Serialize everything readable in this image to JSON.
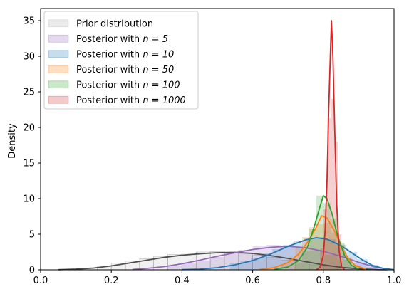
{
  "chart_data": {
    "type": "area",
    "title": "",
    "xlabel": "",
    "ylabel": "Density",
    "xlim": [
      0.0,
      1.0
    ],
    "ylim": [
      0,
      36.7
    ],
    "xticks": [
      0.0,
      0.2,
      0.4,
      0.6,
      0.8,
      1.0
    ],
    "xtick_labels": [
      "0.0",
      "0.2",
      "0.4",
      "0.6",
      "0.8",
      "1.0"
    ],
    "yticks": [
      0,
      5,
      10,
      15,
      20,
      25,
      30,
      35
    ],
    "ytick_labels": [
      "0",
      "5",
      "10",
      "15",
      "20",
      "25",
      "30",
      "35"
    ],
    "grid": false,
    "legend_position": "upper left",
    "legend_label_prefix": "Posterior with ",
    "series": [
      {
        "name": "Prior distribution",
        "n": "",
        "color": "#4d4d4d",
        "fill": "#b0b0b0",
        "kde": [
          [
            0.05,
            0.02
          ],
          [
            0.1,
            0.1
          ],
          [
            0.15,
            0.25
          ],
          [
            0.2,
            0.55
          ],
          [
            0.25,
            0.95
          ],
          [
            0.3,
            1.35
          ],
          [
            0.35,
            1.75
          ],
          [
            0.4,
            2.05
          ],
          [
            0.45,
            2.25
          ],
          [
            0.5,
            2.4
          ],
          [
            0.55,
            2.45
          ],
          [
            0.6,
            2.3
          ],
          [
            0.65,
            2.0
          ],
          [
            0.7,
            1.6
          ],
          [
            0.75,
            1.15
          ],
          [
            0.8,
            0.7
          ],
          [
            0.85,
            0.35
          ],
          [
            0.9,
            0.15
          ],
          [
            0.95,
            0.03
          ],
          [
            0.98,
            0.01
          ]
        ],
        "bins": [
          [
            0.1,
            0.12
          ],
          [
            0.14,
            0.25
          ],
          [
            0.18,
            0.55
          ],
          [
            0.22,
            0.95
          ],
          [
            0.26,
            1.25
          ],
          [
            0.3,
            1.55
          ],
          [
            0.34,
            1.9
          ],
          [
            0.38,
            2.15
          ],
          [
            0.42,
            2.35
          ],
          [
            0.46,
            2.5
          ],
          [
            0.5,
            2.55
          ],
          [
            0.54,
            2.5
          ],
          [
            0.58,
            2.3
          ],
          [
            0.62,
            2.05
          ],
          [
            0.66,
            1.75
          ],
          [
            0.7,
            1.35
          ],
          [
            0.74,
            1.0
          ],
          [
            0.78,
            0.7
          ],
          [
            0.82,
            0.45
          ],
          [
            0.86,
            0.25
          ],
          [
            0.9,
            0.1
          ]
        ]
      },
      {
        "name": "Posterior with ",
        "n": "n = 5",
        "color": "#9467bd",
        "fill": "#9467bd",
        "kde": [
          [
            0.26,
            0.05
          ],
          [
            0.3,
            0.2
          ],
          [
            0.35,
            0.45
          ],
          [
            0.4,
            0.85
          ],
          [
            0.45,
            1.35
          ],
          [
            0.5,
            1.9
          ],
          [
            0.55,
            2.4
          ],
          [
            0.6,
            2.85
          ],
          [
            0.65,
            3.15
          ],
          [
            0.7,
            3.3
          ],
          [
            0.75,
            3.1
          ],
          [
            0.8,
            2.6
          ],
          [
            0.85,
            1.9
          ],
          [
            0.9,
            1.05
          ],
          [
            0.95,
            0.35
          ],
          [
            0.99,
            0.05
          ]
        ],
        "bins": [
          [
            0.38,
            0.6
          ],
          [
            0.42,
            0.9
          ],
          [
            0.46,
            1.3
          ],
          [
            0.5,
            1.8
          ],
          [
            0.54,
            2.3
          ],
          [
            0.58,
            2.8
          ],
          [
            0.62,
            3.3
          ],
          [
            0.66,
            3.5
          ],
          [
            0.7,
            3.4
          ],
          [
            0.74,
            3.1
          ],
          [
            0.78,
            2.7
          ],
          [
            0.82,
            2.1
          ],
          [
            0.86,
            1.5
          ],
          [
            0.9,
            0.9
          ],
          [
            0.94,
            0.4
          ]
        ]
      },
      {
        "name": "Posterior with ",
        "n": "n = 10",
        "color": "#1f77b4",
        "fill": "#1f77b4",
        "kde": [
          [
            0.4,
            0.03
          ],
          [
            0.45,
            0.1
          ],
          [
            0.5,
            0.3
          ],
          [
            0.55,
            0.7
          ],
          [
            0.6,
            1.3
          ],
          [
            0.65,
            2.2
          ],
          [
            0.7,
            3.3
          ],
          [
            0.75,
            4.2
          ],
          [
            0.78,
            4.5
          ],
          [
            0.81,
            4.3
          ],
          [
            0.85,
            3.4
          ],
          [
            0.88,
            2.4
          ],
          [
            0.91,
            1.4
          ],
          [
            0.94,
            0.6
          ],
          [
            0.97,
            0.2
          ],
          [
            1.0,
            0.02
          ]
        ],
        "bins": [
          [
            0.55,
            0.9
          ],
          [
            0.58,
            1.2
          ],
          [
            0.61,
            1.7
          ],
          [
            0.64,
            2.3
          ],
          [
            0.67,
            2.9
          ],
          [
            0.7,
            3.5
          ],
          [
            0.73,
            4.0
          ],
          [
            0.76,
            4.4
          ],
          [
            0.79,
            4.6
          ],
          [
            0.82,
            4.3
          ],
          [
            0.85,
            3.5
          ],
          [
            0.88,
            2.5
          ],
          [
            0.91,
            1.5
          ],
          [
            0.94,
            0.7
          ]
        ]
      },
      {
        "name": "Posterior with ",
        "n": "n = 50",
        "color": "#ff7f0e",
        "fill": "#ff7f0e",
        "kde": [
          [
            0.62,
            0.05
          ],
          [
            0.66,
            0.3
          ],
          [
            0.7,
            1.0
          ],
          [
            0.73,
            2.2
          ],
          [
            0.76,
            4.2
          ],
          [
            0.78,
            6.0
          ],
          [
            0.795,
            7.6
          ],
          [
            0.81,
            7.3
          ],
          [
            0.83,
            5.6
          ],
          [
            0.85,
            3.4
          ],
          [
            0.87,
            1.6
          ],
          [
            0.89,
            0.6
          ],
          [
            0.92,
            0.1
          ]
        ],
        "bins": [
          [
            0.69,
            0.8
          ],
          [
            0.71,
            1.8
          ],
          [
            0.73,
            3.0
          ],
          [
            0.75,
            4.6
          ],
          [
            0.77,
            6.0
          ],
          [
            0.79,
            6.4
          ],
          [
            0.81,
            6.6
          ],
          [
            0.83,
            5.2
          ],
          [
            0.85,
            3.6
          ],
          [
            0.87,
            1.8
          ],
          [
            0.89,
            0.7
          ]
        ]
      },
      {
        "name": "Posterior with ",
        "n": "n = 100",
        "color": "#2ca02c",
        "fill": "#2ca02c",
        "kde": [
          [
            0.66,
            0.05
          ],
          [
            0.7,
            0.4
          ],
          [
            0.73,
            1.3
          ],
          [
            0.755,
            3.2
          ],
          [
            0.775,
            6.2
          ],
          [
            0.79,
            8.8
          ],
          [
            0.8,
            10.4
          ],
          [
            0.81,
            10.0
          ],
          [
            0.825,
            7.8
          ],
          [
            0.84,
            4.8
          ],
          [
            0.86,
            2.0
          ],
          [
            0.88,
            0.6
          ],
          [
            0.9,
            0.1
          ]
        ],
        "bins": [
          [
            0.73,
            0.9
          ],
          [
            0.75,
            2.6
          ],
          [
            0.77,
            5.8
          ],
          [
            0.79,
            10.4
          ],
          [
            0.81,
            9.4
          ],
          [
            0.83,
            7.2
          ],
          [
            0.85,
            3.8
          ],
          [
            0.87,
            1.4
          ]
        ]
      },
      {
        "name": "Posterior with ",
        "n": "n = 1000",
        "color": "#d62728",
        "fill": "#d62728",
        "kde": [
          [
            0.78,
            0.0
          ],
          [
            0.79,
            0.3
          ],
          [
            0.8,
            2.0
          ],
          [
            0.805,
            5.5
          ],
          [
            0.81,
            12.0
          ],
          [
            0.815,
            22.0
          ],
          [
            0.82,
            30.5
          ],
          [
            0.823,
            35.0
          ],
          [
            0.827,
            30.0
          ],
          [
            0.832,
            20.0
          ],
          [
            0.838,
            9.0
          ],
          [
            0.845,
            2.5
          ],
          [
            0.852,
            0.4
          ],
          [
            0.86,
            0.0
          ]
        ],
        "bins": [
          [
            0.796,
            3.0
          ],
          [
            0.806,
            8.5
          ],
          [
            0.816,
            21.3
          ],
          [
            0.826,
            24.0
          ],
          [
            0.836,
            18.0
          ],
          [
            0.846,
            5.0
          ]
        ]
      }
    ]
  }
}
